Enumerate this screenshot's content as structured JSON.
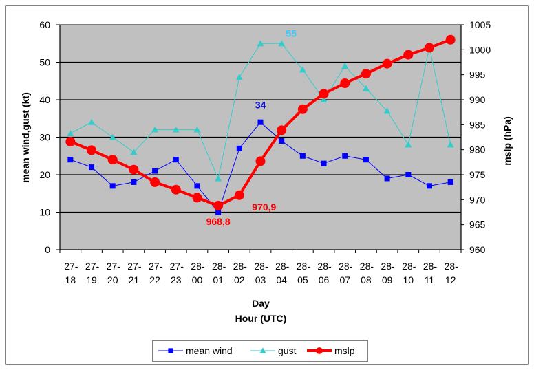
{
  "chart_data": {
    "type": "line",
    "xlabel_lines": [
      "Day",
      "Hour (UTC)"
    ],
    "ylabel": "mean wind,gust (kt)",
    "y2label": "mslp (hPa)",
    "ylim": [
      0,
      60
    ],
    "y2lim": [
      960,
      1005
    ],
    "yticks": [
      0,
      10,
      20,
      30,
      40,
      50,
      60
    ],
    "y2ticks": [
      960,
      965,
      970,
      975,
      980,
      985,
      990,
      995,
      1000,
      1005
    ],
    "grid": true,
    "legend_position": "bottom",
    "categories": [
      [
        "27-",
        "18"
      ],
      [
        "27-",
        "19"
      ],
      [
        "27-",
        "20"
      ],
      [
        "27-",
        "21"
      ],
      [
        "27-",
        "22"
      ],
      [
        "27-",
        "23"
      ],
      [
        "28-",
        "00"
      ],
      [
        "28-",
        "01"
      ],
      [
        "28-",
        "02"
      ],
      [
        "28-",
        "03"
      ],
      [
        "28-",
        "04"
      ],
      [
        "28-",
        "05"
      ],
      [
        "28-",
        "06"
      ],
      [
        "28-",
        "07"
      ],
      [
        "28-",
        "08"
      ],
      [
        "28-",
        "09"
      ],
      [
        "28-",
        "10"
      ],
      [
        "28-",
        "11"
      ],
      [
        "28-",
        "12"
      ]
    ],
    "series": [
      {
        "name": "mean wind",
        "axis": "left",
        "color": "#0000FF",
        "marker": "square",
        "values": [
          24,
          22,
          17,
          18,
          21,
          24,
          17,
          10,
          27,
          34,
          29,
          25,
          23,
          25,
          24,
          19,
          20,
          17,
          18
        ]
      },
      {
        "name": "gust",
        "axis": "left",
        "color": "#33CCCC",
        "marker": "triangle",
        "values": [
          31,
          34,
          30,
          26,
          32,
          32,
          32,
          19,
          46,
          55,
          55,
          48,
          40,
          49,
          43,
          37,
          28,
          54,
          28
        ]
      },
      {
        "name": "mslp",
        "axis": "right",
        "color": "#FF0000",
        "marker": "circle",
        "values": [
          981.6,
          979.9,
          978.0,
          976.0,
          973.5,
          972.0,
          970.4,
          968.8,
          970.9,
          977.7,
          983.9,
          988.1,
          991.2,
          993.3,
          995.2,
          997.2,
          999.0,
          1000.4,
          1002.0
        ]
      }
    ],
    "annotations": [
      {
        "text": "968,8",
        "series": "mslp",
        "index": 7,
        "color": "#FF0000"
      },
      {
        "text": "970,9",
        "series": "mslp",
        "index": 8,
        "color": "#FF0000"
      },
      {
        "text": "34",
        "series": "mean wind",
        "index": 9,
        "color": "#0000CC"
      },
      {
        "text": "55",
        "series": "gust",
        "index": 10,
        "color": "#33CCFF"
      }
    ],
    "plot_background": "#C0C0C0"
  }
}
